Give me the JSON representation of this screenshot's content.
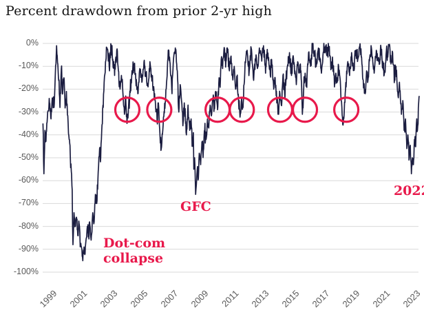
{
  "chart_data": {
    "type": "line",
    "title": "Percent drawdown from prior 2-yr high",
    "series_name": "percent-drawdown-from-prior-2yr-high",
    "colors": {
      "line": "#1b1d40",
      "grid": "#d9d9d9",
      "axis_text": "#595959",
      "accent": "#e8194b",
      "title_text": "#141414"
    },
    "xlim": [
      1998.85,
      2023.85
    ],
    "ylim": [
      -100,
      0
    ],
    "grid": "horizontal-only",
    "legend": "none",
    "y_ticks": [
      {
        "value": 0,
        "label": "0%"
      },
      {
        "value": -10,
        "label": "-10%"
      },
      {
        "value": -20,
        "label": "-20%"
      },
      {
        "value": -30,
        "label": "-30%"
      },
      {
        "value": -40,
        "label": "-40%"
      },
      {
        "value": -50,
        "label": "-50%"
      },
      {
        "value": -60,
        "label": "-60%"
      },
      {
        "value": -70,
        "label": "-70%"
      },
      {
        "value": -80,
        "label": "-80%"
      },
      {
        "value": -90,
        "label": "-90%"
      },
      {
        "value": -100,
        "label": "-100%"
      }
    ],
    "x_ticks": [
      {
        "value": 1999,
        "label": "1999"
      },
      {
        "value": 2001,
        "label": "2001"
      },
      {
        "value": 2003,
        "label": "2003"
      },
      {
        "value": 2005,
        "label": "2005"
      },
      {
        "value": 2007,
        "label": "2007"
      },
      {
        "value": 2009,
        "label": "2009"
      },
      {
        "value": 2011,
        "label": "2011"
      },
      {
        "value": 2013,
        "label": "2013"
      },
      {
        "value": 2015,
        "label": "2015"
      },
      {
        "value": 2017,
        "label": "2017"
      },
      {
        "value": 2019,
        "label": "2019"
      },
      {
        "value": 2021,
        "label": "2021"
      },
      {
        "value": 2023,
        "label": "2023"
      }
    ],
    "keypoints": [
      [
        1998.87,
        -35
      ],
      [
        1998.93,
        -57
      ],
      [
        1999.0,
        -38
      ],
      [
        1999.05,
        -43
      ],
      [
        1999.18,
        -30
      ],
      [
        1999.3,
        -26
      ],
      [
        1999.4,
        -33
      ],
      [
        1999.5,
        -24
      ],
      [
        1999.6,
        -28
      ],
      [
        1999.68,
        -14
      ],
      [
        1999.77,
        -1
      ],
      [
        1999.85,
        -9
      ],
      [
        1999.93,
        -16
      ],
      [
        1999.99,
        -28
      ],
      [
        2000.08,
        -11
      ],
      [
        2000.17,
        -22
      ],
      [
        2000.25,
        -15
      ],
      [
        2000.35,
        -27
      ],
      [
        2000.42,
        -21
      ],
      [
        2000.53,
        -35
      ],
      [
        2000.6,
        -42
      ],
      [
        2000.67,
        -48
      ],
      [
        2000.74,
        -56
      ],
      [
        2000.8,
        -64
      ],
      [
        2000.85,
        -88
      ],
      [
        2000.92,
        -74
      ],
      [
        2001.0,
        -80
      ],
      [
        2001.08,
        -76
      ],
      [
        2001.17,
        -84
      ],
      [
        2001.26,
        -79
      ],
      [
        2001.35,
        -88
      ],
      [
        2001.44,
        -90
      ],
      [
        2001.5,
        -95
      ],
      [
        2001.58,
        -89
      ],
      [
        2001.65,
        -92
      ],
      [
        2001.75,
        -85
      ],
      [
        2001.8,
        -80
      ],
      [
        2001.88,
        -84
      ],
      [
        2001.95,
        -78
      ],
      [
        2002.05,
        -86
      ],
      [
        2002.16,
        -74
      ],
      [
        2002.25,
        -78
      ],
      [
        2002.33,
        -66
      ],
      [
        2002.42,
        -70
      ],
      [
        2002.52,
        -56
      ],
      [
        2002.61,
        -46
      ],
      [
        2002.68,
        -50
      ],
      [
        2002.75,
        -38
      ],
      [
        2002.83,
        -27
      ],
      [
        2002.91,
        -17
      ],
      [
        2003.0,
        -8
      ],
      [
        2003.1,
        -2
      ],
      [
        2003.24,
        -10
      ],
      [
        2003.37,
        -1
      ],
      [
        2003.48,
        -7
      ],
      [
        2003.6,
        -14
      ],
      [
        2003.68,
        -6
      ],
      [
        2003.74,
        -3
      ],
      [
        2003.85,
        -12
      ],
      [
        2003.96,
        -20
      ],
      [
        2004.05,
        -14
      ],
      [
        2004.15,
        -22
      ],
      [
        2004.25,
        -31
      ],
      [
        2004.33,
        -23
      ],
      [
        2004.42,
        -35
      ],
      [
        2004.52,
        -28
      ],
      [
        2004.59,
        -24
      ],
      [
        2004.73,
        -14
      ],
      [
        2004.86,
        -9
      ],
      [
        2005.0,
        -16
      ],
      [
        2005.13,
        -22
      ],
      [
        2005.27,
        -11
      ],
      [
        2005.4,
        -17
      ],
      [
        2005.54,
        -8
      ],
      [
        2005.68,
        -13
      ],
      [
        2005.81,
        -19
      ],
      [
        2005.95,
        -9
      ],
      [
        2006.08,
        -15
      ],
      [
        2006.22,
        -24
      ],
      [
        2006.31,
        -28
      ],
      [
        2006.4,
        -33
      ],
      [
        2006.49,
        -26
      ],
      [
        2006.58,
        -38
      ],
      [
        2006.68,
        -46
      ],
      [
        2006.78,
        -38
      ],
      [
        2006.85,
        -32
      ],
      [
        2006.94,
        -26
      ],
      [
        2007.03,
        -17
      ],
      [
        2007.14,
        -3
      ],
      [
        2007.25,
        -8
      ],
      [
        2007.33,
        -14
      ],
      [
        2007.39,
        -22
      ],
      [
        2007.45,
        -12
      ],
      [
        2007.52,
        -5
      ],
      [
        2007.61,
        -2
      ],
      [
        2007.7,
        -9
      ],
      [
        2007.78,
        -18
      ],
      [
        2007.84,
        -30
      ],
      [
        2007.93,
        -18
      ],
      [
        2008.02,
        -25
      ],
      [
        2008.11,
        -36
      ],
      [
        2008.2,
        -26
      ],
      [
        2008.34,
        -40
      ],
      [
        2008.43,
        -29
      ],
      [
        2008.56,
        -38
      ],
      [
        2008.65,
        -33
      ],
      [
        2008.74,
        -45
      ],
      [
        2008.8,
        -39
      ],
      [
        2008.83,
        -55
      ],
      [
        2008.88,
        -50
      ],
      [
        2008.95,
        -66
      ],
      [
        2009.06,
        -55
      ],
      [
        2009.13,
        -59
      ],
      [
        2009.19,
        -48
      ],
      [
        2009.28,
        -53
      ],
      [
        2009.37,
        -43
      ],
      [
        2009.46,
        -47
      ],
      [
        2009.55,
        -38
      ],
      [
        2009.64,
        -42
      ],
      [
        2009.73,
        -33
      ],
      [
        2009.82,
        -37
      ],
      [
        2009.91,
        -27
      ],
      [
        2010.01,
        -31
      ],
      [
        2010.1,
        -24
      ],
      [
        2010.18,
        -27
      ],
      [
        2010.28,
        -21
      ],
      [
        2010.4,
        -29
      ],
      [
        2010.5,
        -15
      ],
      [
        2010.55,
        -18
      ],
      [
        2010.64,
        -7
      ],
      [
        2010.73,
        -11
      ],
      [
        2010.82,
        -3
      ],
      [
        2010.95,
        -8
      ],
      [
        2011.04,
        -2
      ],
      [
        2011.18,
        -12
      ],
      [
        2011.27,
        -6
      ],
      [
        2011.41,
        -16
      ],
      [
        2011.5,
        -10
      ],
      [
        2011.59,
        -20
      ],
      [
        2011.68,
        -15
      ],
      [
        2011.79,
        -26
      ],
      [
        2011.9,
        -31
      ],
      [
        2011.99,
        -24
      ],
      [
        2012.08,
        -28
      ],
      [
        2012.15,
        -18
      ],
      [
        2012.22,
        -8
      ],
      [
        2012.35,
        -3
      ],
      [
        2012.49,
        -12
      ],
      [
        2012.62,
        -2
      ],
      [
        2012.76,
        -15
      ],
      [
        2012.85,
        -9
      ],
      [
        2012.94,
        -5
      ],
      [
        2013.03,
        -11
      ],
      [
        2013.16,
        -2
      ],
      [
        2013.3,
        -6
      ],
      [
        2013.43,
        -1
      ],
      [
        2013.57,
        -13
      ],
      [
        2013.66,
        -5
      ],
      [
        2013.79,
        -9
      ],
      [
        2013.88,
        -14
      ],
      [
        2013.97,
        -7
      ],
      [
        2014.11,
        -20
      ],
      [
        2014.2,
        -15
      ],
      [
        2014.31,
        -26
      ],
      [
        2014.43,
        -31
      ],
      [
        2014.52,
        -22
      ],
      [
        2014.61,
        -27
      ],
      [
        2014.72,
        -14
      ],
      [
        2014.83,
        -22
      ],
      [
        2014.92,
        -16
      ],
      [
        2015.01,
        -10
      ],
      [
        2015.15,
        -4
      ],
      [
        2015.28,
        -14
      ],
      [
        2015.37,
        -6
      ],
      [
        2015.51,
        -12
      ],
      [
        2015.6,
        -18
      ],
      [
        2015.69,
        -8
      ],
      [
        2015.78,
        -13
      ],
      [
        2015.87,
        -9
      ],
      [
        2015.94,
        -17
      ],
      [
        2016.0,
        -31
      ],
      [
        2016.09,
        -19
      ],
      [
        2016.18,
        -13
      ],
      [
        2016.27,
        -17
      ],
      [
        2016.41,
        -4
      ],
      [
        2016.54,
        -10
      ],
      [
        2016.68,
        -1
      ],
      [
        2016.81,
        -5
      ],
      [
        2016.95,
        -9
      ],
      [
        2017.04,
        -3
      ],
      [
        2017.17,
        -8
      ],
      [
        2017.26,
        -13
      ],
      [
        2017.4,
        -4
      ],
      [
        2017.54,
        -1
      ],
      [
        2017.67,
        -5
      ],
      [
        2017.76,
        -2
      ],
      [
        2017.9,
        -11
      ],
      [
        2017.99,
        -6
      ],
      [
        2018.12,
        -19
      ],
      [
        2018.21,
        -13
      ],
      [
        2018.3,
        -17
      ],
      [
        2018.39,
        -10
      ],
      [
        2018.48,
        -15
      ],
      [
        2018.57,
        -25
      ],
      [
        2018.7,
        -35
      ],
      [
        2018.85,
        -20
      ],
      [
        2018.98,
        -9
      ],
      [
        2019.12,
        -14
      ],
      [
        2019.25,
        -4
      ],
      [
        2019.39,
        -11
      ],
      [
        2019.52,
        -3
      ],
      [
        2019.66,
        -7
      ],
      [
        2019.79,
        -1
      ],
      [
        2019.93,
        -9
      ],
      [
        2020.02,
        -16
      ],
      [
        2020.15,
        -22
      ],
      [
        2020.24,
        -12
      ],
      [
        2020.33,
        -16
      ],
      [
        2020.47,
        -5
      ],
      [
        2020.56,
        -2
      ],
      [
        2020.65,
        -8
      ],
      [
        2020.74,
        -13
      ],
      [
        2020.88,
        -3
      ],
      [
        2020.97,
        -7
      ],
      [
        2021.1,
        -9
      ],
      [
        2021.19,
        -2
      ],
      [
        2021.33,
        -10
      ],
      [
        2021.42,
        -13
      ],
      [
        2021.55,
        -3
      ],
      [
        2021.64,
        -6
      ],
      [
        2021.73,
        -1
      ],
      [
        2021.87,
        -8
      ],
      [
        2021.96,
        -4
      ],
      [
        2022.09,
        -15
      ],
      [
        2022.18,
        -10
      ],
      [
        2022.32,
        -23
      ],
      [
        2022.41,
        -17
      ],
      [
        2022.54,
        -31
      ],
      [
        2022.63,
        -25
      ],
      [
        2022.72,
        -38
      ],
      [
        2022.81,
        -33
      ],
      [
        2022.9,
        -46
      ],
      [
        2022.97,
        -40
      ],
      [
        2023.04,
        -51
      ],
      [
        2023.11,
        -45
      ],
      [
        2023.2,
        -57
      ],
      [
        2023.26,
        -50
      ],
      [
        2023.33,
        -53
      ],
      [
        2023.4,
        -42
      ],
      [
        2023.46,
        -45
      ],
      [
        2023.53,
        -35
      ],
      [
        2023.6,
        -38
      ],
      [
        2023.66,
        -28
      ],
      [
        2023.73,
        -23
      ]
    ],
    "circled_dips": [
      {
        "year": 2004.44,
        "value": -29
      },
      {
        "year": 2006.55,
        "value": -29
      },
      {
        "year": 2010.4,
        "value": -29
      },
      {
        "year": 2012.0,
        "value": -29
      },
      {
        "year": 2014.53,
        "value": -29
      },
      {
        "year": 2016.17,
        "value": -29
      },
      {
        "year": 2018.9,
        "value": -29
      }
    ],
    "annotations": [
      {
        "id": "dotcom",
        "text": "Dot-com\ncollapse",
        "year": 2002.85,
        "value": -84
      },
      {
        "id": "gfc",
        "text": "GFC",
        "year": 2007.94,
        "value": -68
      },
      {
        "id": "y2022",
        "text": "2022",
        "year": 2022.03,
        "value": -61
      }
    ]
  }
}
